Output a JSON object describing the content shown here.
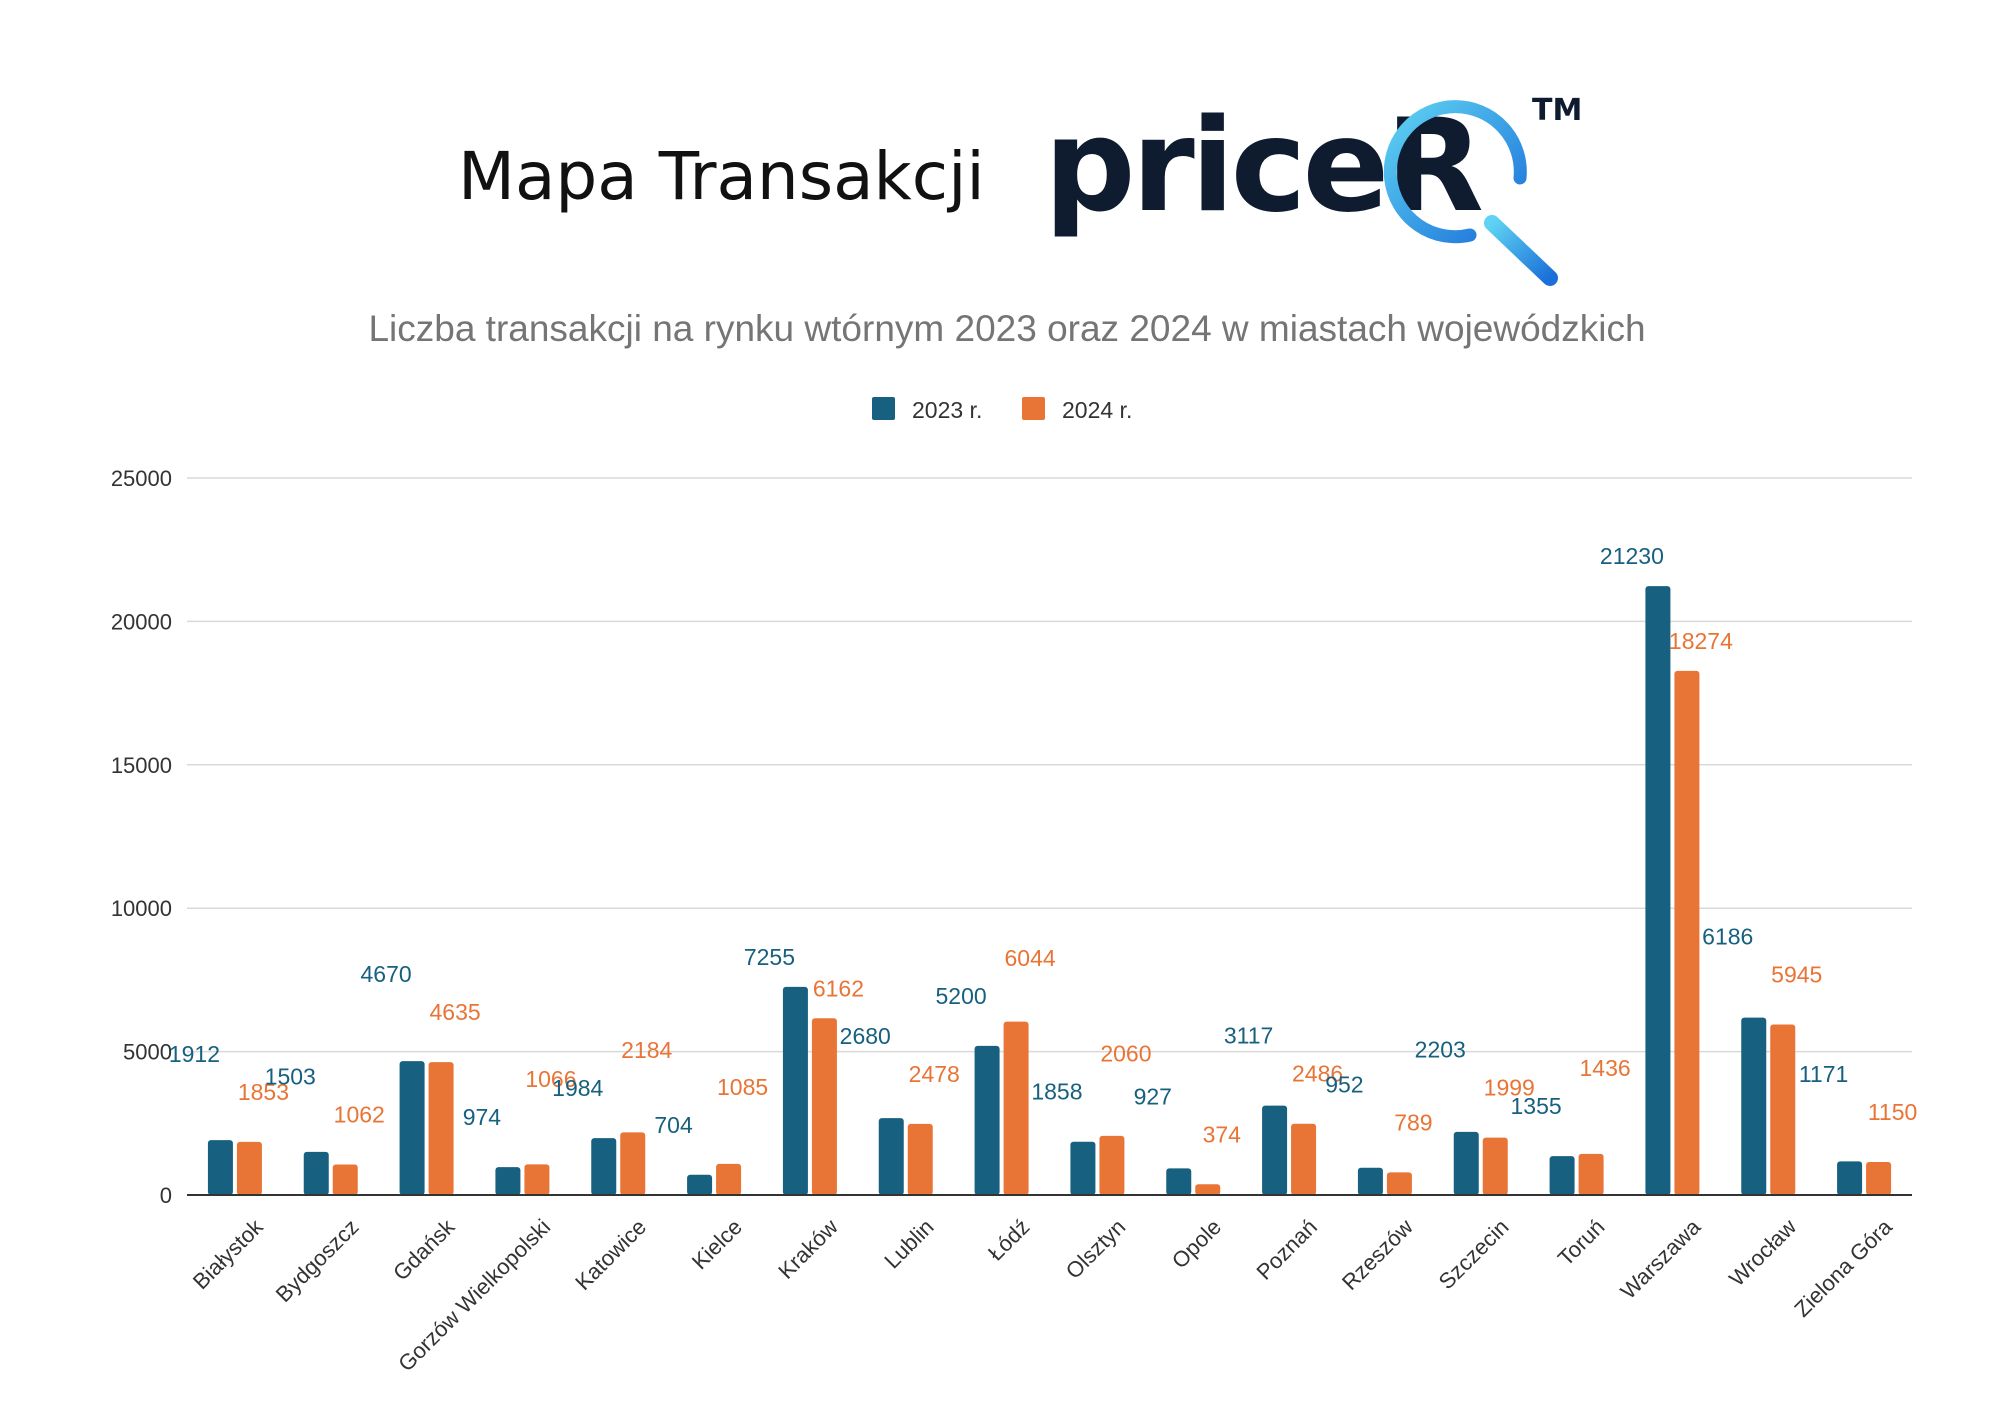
{
  "header": {
    "title": "Mapa Transakcji",
    "brand_name": "priceR",
    "trademark": "TM"
  },
  "colors": {
    "series_2023": "#17607f",
    "series_2024": "#e87435",
    "grid": "#d9d9d9",
    "axis": "#333333",
    "tick_text": "#333333",
    "title_text": "#757575",
    "logo_dark": "#0f1b2e",
    "logo_blue_light": "#5fd3f3",
    "logo_blue_dark": "#1a6fd8"
  },
  "chart_data": {
    "type": "bar",
    "title": "Liczba transakcji na rynku wtórnym 2023 oraz 2024 w miastach wojewódzkich",
    "xlabel": "",
    "ylabel": "",
    "ylim": [
      0,
      25000
    ],
    "yticks": [
      0,
      5000,
      10000,
      15000,
      20000,
      25000
    ],
    "grid": true,
    "legend_position": "top-center",
    "categories": [
      "Białystok",
      "Bydgoszcz",
      "Gdańsk",
      "Gorzów Wielkopolski",
      "Katowice",
      "Kielce",
      "Kraków",
      "Lublin",
      "Łódź",
      "Olsztyn",
      "Opole",
      "Poznań",
      "Rzeszów",
      "Szczecin",
      "Toruń",
      "Warszawa",
      "Wrocław",
      "Zielona Góra"
    ],
    "series": [
      {
        "name": "2023 r.",
        "values": [
          1912,
          1503,
          4670,
          974,
          1984,
          704,
          7255,
          2680,
          5200,
          1858,
          927,
          3117,
          952,
          2203,
          1355,
          21230,
          6186,
          1171
        ]
      },
      {
        "name": "2024 r.",
        "values": [
          1853,
          1062,
          4635,
          1066,
          2184,
          1085,
          6162,
          2478,
          6044,
          2060,
          374,
          2486,
          789,
          1999,
          1436,
          18274,
          5945,
          1150
        ]
      }
    ]
  }
}
